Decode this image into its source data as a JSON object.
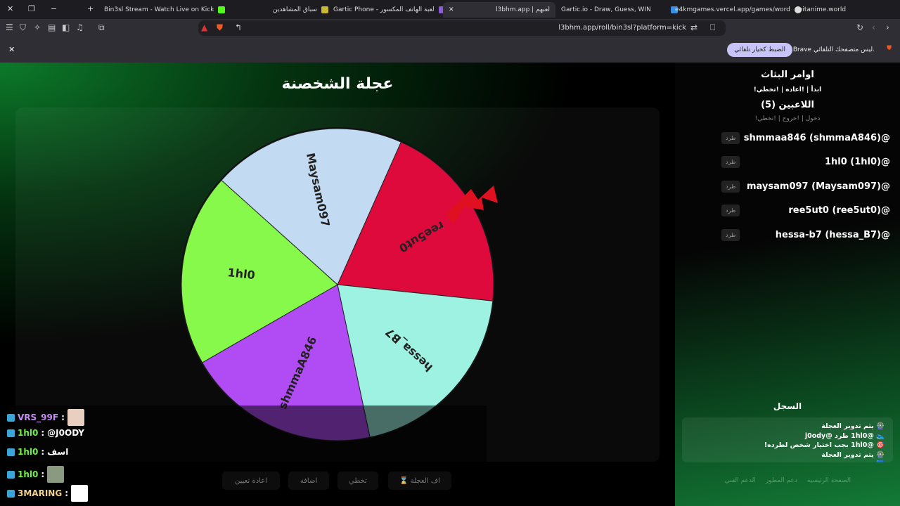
{
  "browser": {
    "tabs": [
      {
        "title": "Bin3sl Stream - Watch Live on Kick",
        "fav": "#53fc18"
      },
      {
        "title": "سباق المشاهدين",
        "fav": "#c9b830"
      },
      {
        "title": "Gartic Phone - لعبة الهاتف المكسور",
        "fav": "#8a5cd6"
      },
      {
        "title": "l3bhm.app | لعبهم",
        "fav": "#aaa",
        "active": true
      },
      {
        "title": "Gartic.io - Draw, Guess, WIN",
        "fav": "#3a8ee6"
      },
      {
        "title": "e4kmgames.vercel.app/games/word",
        "fav": "#ddd"
      },
      {
        "title": "witanime.world",
        "fav": "#ccc"
      }
    ],
    "url": "l3bhm.app/roll/bin3sl?platform=kick",
    "notice": {
      "message": "Brave ليس متصفحك التلقائي.",
      "button": "الضبط كخيار تلقائي"
    }
  },
  "main": {
    "title": "عجلة الشخصنة"
  },
  "wheel": {
    "slices": [
      {
        "label": "ree5ut0",
        "color": "#de0a3c"
      },
      {
        "label": "hessa_B7",
        "color": "#9ef2e2"
      },
      {
        "label": "shmmaA846",
        "color": "#b14cf5"
      },
      {
        "label": "1hl0",
        "color": "#86f94a"
      },
      {
        "label": "Maysam097",
        "color": "#c2daf2"
      }
    ],
    "pointer_color": "#e01020"
  },
  "sidebar": {
    "commands_title": "اوامر البثاث",
    "commands": "!ابدأ | !اعاده | !تخطي",
    "players_title": "اللاعبين (5)",
    "player_commands": "!دخول | !خروج | !تخطي",
    "kick_label": "طرد",
    "players": [
      "shmmaa846 (shmmaA846)@",
      "1hl0 (1hl0)@",
      "maysam097 (Maysam097)@",
      "ree5ut0 (ree5ut0)@",
      "hessa-b7 (hessa_B7)@"
    ],
    "log_title": "السجل",
    "log": [
      "🎡 يتم تدوير العجلة",
      "👟 @1hl0 طرد @j0ody",
      "🎯 @1hl0 يجب اختيار شخص لطرده!",
      "🎡 يتم تدوير العجلة",
      "🟦 ..."
    ],
    "footer": [
      "الصفحة الرئيسية",
      "دعم المطور",
      "الدعم الفني"
    ]
  },
  "controls": {
    "stop": "⌛ اف العجلة",
    "skip": "تخطي",
    "add": "اضافه",
    "reset": "اعادة تعيين"
  },
  "chat": [
    {
      "user": "VRS_99F",
      "color": "#c58cf5",
      "text": ""
    },
    {
      "user": "1hl0",
      "color": "#6cf240",
      "text": "@J0ODY"
    },
    {
      "user": "1hl0",
      "color": "#6cf240",
      "text": "اسف"
    },
    {
      "user": "1hl0",
      "color": "#6cf240",
      "text": ""
    },
    {
      "user": "3MARING",
      "color": "#f2d28a",
      "text": ""
    }
  ]
}
